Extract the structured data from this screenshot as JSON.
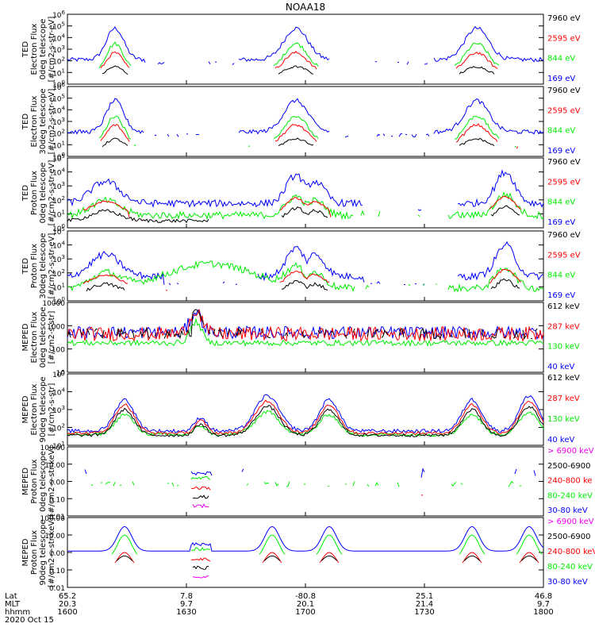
{
  "title": "NOAA18",
  "date_label": "2020 Oct 15",
  "colors": {
    "black": "#000000",
    "red": "#ff0000",
    "green": "#00ee00",
    "blue": "#0000ff",
    "magenta": "#ee00ee"
  },
  "footer": {
    "row_labels": [
      "Lat",
      "MLT",
      "hhmm"
    ],
    "columns": [
      {
        "lat": "65.2",
        "mlt": "20.3",
        "hhmm": "1600"
      },
      {
        "lat": "7.8",
        "mlt": "9.7",
        "hhmm": "1630"
      },
      {
        "lat": "-80.8",
        "mlt": "20.1",
        "hhmm": "1700"
      },
      {
        "lat": "25.1",
        "mlt": "21.4",
        "hhmm": "1730"
      },
      {
        "lat": "46.8",
        "mlt": "9.7",
        "hhmm": "1800"
      }
    ]
  },
  "chart_data": [
    {
      "type": "line",
      "panel": 1,
      "ylabel": [
        "TED",
        "Electron Flux",
        "0deg telescope",
        "[#/cm2-s-str-eV]"
      ],
      "yscale": "log",
      "ylim": [
        1,
        1000000
      ],
      "yticks": [
        "10^0",
        "10^1",
        "10^2",
        "10^3",
        "10^4",
        "10^5",
        "10^6"
      ],
      "x": "time 1600-1800 UT",
      "series": [
        {
          "name": "7960 eV",
          "color": "black"
        },
        {
          "name": "2595 eV",
          "color": "red"
        },
        {
          "name": "844 eV",
          "color": "green"
        },
        {
          "name": "169 eV",
          "color": "blue"
        }
      ]
    },
    {
      "type": "line",
      "panel": 2,
      "ylabel": [
        "TED",
        "Electron Flux",
        "30deg telescope",
        "[#/cm2-s-str-eV]"
      ],
      "yscale": "log",
      "ylim": [
        1,
        1000000
      ],
      "yticks": [
        "10^0",
        "10^1",
        "10^2",
        "10^3",
        "10^4",
        "10^5",
        "10^6"
      ],
      "series": [
        {
          "name": "7960 eV",
          "color": "black"
        },
        {
          "name": "2595 eV",
          "color": "red"
        },
        {
          "name": "844 eV",
          "color": "green"
        },
        {
          "name": "169 eV",
          "color": "blue"
        }
      ]
    },
    {
      "type": "line",
      "panel": 3,
      "ylabel": [
        "TED",
        "Proton Flux",
        "0deg telescope",
        "[#/cm2-s-str-eV]"
      ],
      "yscale": "log",
      "ylim": [
        1,
        100000
      ],
      "yticks": [
        "10^0",
        "10^1",
        "10^2",
        "10^3",
        "10^4",
        "10^5"
      ],
      "series": [
        {
          "name": "7960 eV",
          "color": "black"
        },
        {
          "name": "2595 eV",
          "color": "red"
        },
        {
          "name": "844 eV",
          "color": "green"
        },
        {
          "name": "169 eV",
          "color": "blue"
        }
      ]
    },
    {
      "type": "line",
      "panel": 4,
      "ylabel": [
        "TED",
        "Proton Flux",
        "30deg telescope",
        "[#/cm2-s-str-eV]"
      ],
      "yscale": "log",
      "ylim": [
        1,
        100000
      ],
      "yticks": [
        "10^0",
        "10^1",
        "10^2",
        "10^3",
        "10^4",
        "10^5"
      ],
      "series": [
        {
          "name": "7960 eV",
          "color": "black"
        },
        {
          "name": "2595 eV",
          "color": "red"
        },
        {
          "name": "844 eV",
          "color": "green"
        },
        {
          "name": "169 eV",
          "color": "blue"
        }
      ]
    },
    {
      "type": "line",
      "panel": 5,
      "ylabel": [
        "MEPED",
        "Electron Flux",
        "0deg telescope",
        "[#/cm2-s-str]"
      ],
      "yscale": "log",
      "ylim": [
        10,
        10000
      ],
      "yticks": [
        "10",
        "100",
        "1000",
        "10000"
      ],
      "series": [
        {
          "name": "612 keV",
          "color": "black"
        },
        {
          "name": "287 keV",
          "color": "red"
        },
        {
          "name": "130 keV",
          "color": "green"
        },
        {
          "name": "40 keV",
          "color": "blue"
        }
      ]
    },
    {
      "type": "line",
      "panel": 6,
      "ylabel": [
        "MEPED",
        "Electron Flux",
        "90deg telescope",
        "[#/cm2-s-str]"
      ],
      "yscale": "log",
      "ylim": [
        10,
        100000
      ],
      "yticks": [
        "10^1",
        "10^2",
        "10^3",
        "10^4",
        "10^5"
      ],
      "series": [
        {
          "name": "612 keV",
          "color": "black"
        },
        {
          "name": "287 keV",
          "color": "red"
        },
        {
          "name": "130 keV",
          "color": "green"
        },
        {
          "name": "40 keV",
          "color": "blue"
        }
      ]
    },
    {
      "type": "line",
      "panel": 7,
      "ylabel": [
        "MEPED",
        "Proton Flux",
        "0deg telescope",
        "[#/cm2-s-str-keV]"
      ],
      "yscale": "log",
      "ylim": [
        0.01,
        100
      ],
      "yticks": [
        "0.01",
        "0.10",
        "1.00",
        "10.00",
        "100.00"
      ],
      "series": [
        {
          "name": "> 6900 keV",
          "color": "magenta"
        },
        {
          "name": "2500-6900",
          "color": "black"
        },
        {
          "name": "240-800 ke",
          "color": "red"
        },
        {
          "name": "80-240 keV",
          "color": "green"
        },
        {
          "name": "30-80 keV",
          "color": "blue"
        }
      ]
    },
    {
      "type": "line",
      "panel": 8,
      "ylabel": [
        "MEPED",
        "Proton Flux",
        "90deg telescope",
        "[#/cm2-s-str-keV]"
      ],
      "yscale": "log",
      "ylim": [
        0.01,
        100
      ],
      "yticks": [
        "0.01",
        "0.10",
        "1.00",
        "10.00",
        "100.00"
      ],
      "series": [
        {
          "name": "> 6900 keV",
          "color": "magenta"
        },
        {
          "name": "2500-6900",
          "color": "black"
        },
        {
          "name": "240-800 keV",
          "color": "red"
        },
        {
          "name": "80-240 keV",
          "color": "green"
        },
        {
          "name": "30-80 keV",
          "color": "blue"
        }
      ]
    }
  ]
}
